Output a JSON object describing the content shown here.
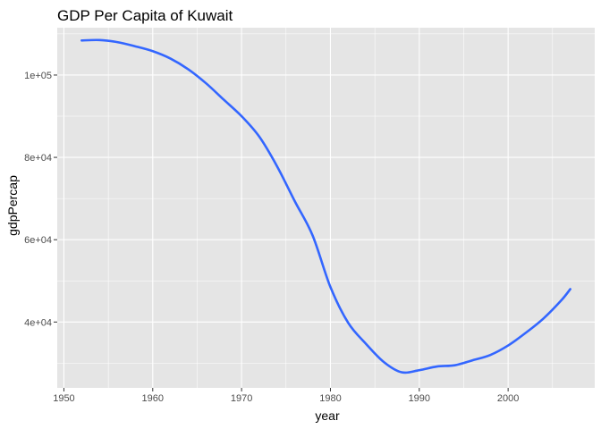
{
  "chart_data": {
    "type": "line",
    "title": "GDP Per Capita of Kuwait",
    "xlabel": "year",
    "ylabel": "gdpPercap",
    "xlim": [
      1949.25,
      2009.75
    ],
    "ylim": [
      24000,
      111500
    ],
    "x_ticks": [
      1950,
      1960,
      1970,
      1980,
      1990,
      2000
    ],
    "x_tick_labels": [
      "1950",
      "1960",
      "1970",
      "1980",
      "1990",
      "2000"
    ],
    "y_ticks": [
      40000,
      60000,
      80000,
      100000
    ],
    "y_tick_labels": [
      "4e+04",
      "6e+04",
      "8e+04",
      "1e+05"
    ],
    "grid": true,
    "background_color": "#e5e5e5",
    "grid_color": "#ffffff",
    "series": [
      {
        "color": "#3366ff",
        "x": [
          1952,
          1954,
          1956,
          1958,
          1960,
          1962,
          1964,
          1966,
          1968,
          1970,
          1972,
          1974,
          1976,
          1978,
          1980,
          1982,
          1984,
          1986,
          1988,
          1990,
          1992,
          1994,
          1996,
          1998,
          2000,
          2002,
          2004,
          2006,
          2007
        ],
        "y": [
          108400,
          108500,
          108000,
          107000,
          105800,
          104000,
          101400,
          98000,
          94000,
          90000,
          85000,
          77800,
          69300,
          61000,
          48500,
          39800,
          34700,
          30300,
          27800,
          28300,
          29200,
          29500,
          30700,
          32000,
          34300,
          37400,
          40900,
          45300,
          48000
        ]
      }
    ]
  }
}
